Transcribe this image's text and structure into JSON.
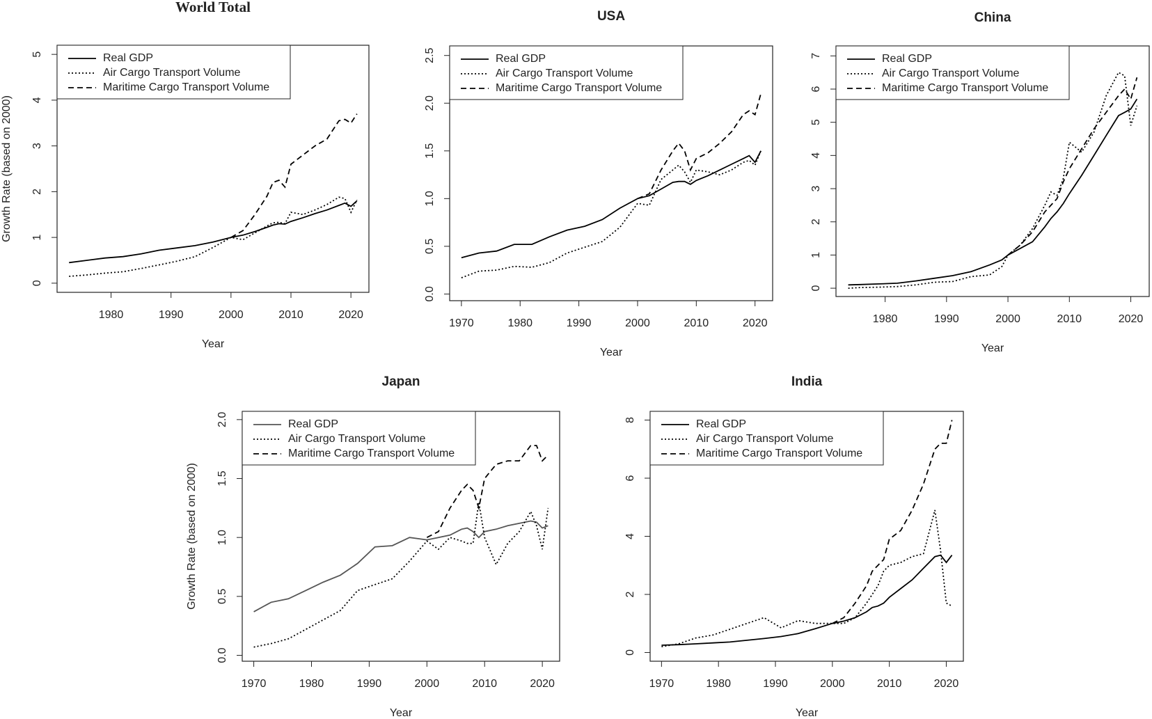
{
  "chart_data": [
    {
      "type": "line",
      "title": "World Total",
      "xlabel": "Year",
      "ylabel": "Growth Rate (based on 2000)",
      "x": [
        1973,
        1976,
        1979,
        1982,
        1985,
        1988,
        1991,
        1994,
        1997,
        2000,
        2002,
        2004,
        2006,
        2007,
        2008,
        2009,
        2010,
        2012,
        2014,
        2016,
        2018,
        2019,
        2020,
        2021
      ],
      "xlim": [
        1971,
        2023
      ],
      "xticks": [
        1980,
        1990,
        2000,
        2010,
        2020
      ],
      "ylim": [
        -0.2,
        5.2
      ],
      "yticks": [
        0,
        1,
        2,
        3,
        4,
        5
      ],
      "series": [
        {
          "name": "Real GDP",
          "color": "#000000",
          "dash": "solid",
          "values": [
            0.45,
            0.5,
            0.55,
            0.58,
            0.64,
            0.72,
            0.77,
            0.82,
            0.9,
            1.0,
            1.05,
            1.13,
            1.22,
            1.27,
            1.3,
            1.29,
            1.35,
            1.43,
            1.52,
            1.6,
            1.7,
            1.75,
            1.68,
            1.8
          ]
        },
        {
          "name": "Air Cargo Transport Volume",
          "color": "#000000",
          "dash": "dotted",
          "values": [
            0.15,
            0.18,
            0.22,
            0.25,
            0.32,
            0.4,
            0.48,
            0.58,
            0.78,
            1.0,
            0.95,
            1.1,
            1.25,
            1.32,
            1.33,
            1.3,
            1.55,
            1.5,
            1.6,
            1.72,
            1.88,
            1.85,
            1.55,
            1.82
          ]
        },
        {
          "name": "Maritime Cargo Transport Volume",
          "color": "#000000",
          "dash": "dashed",
          "values": [
            null,
            null,
            null,
            null,
            null,
            null,
            null,
            null,
            null,
            1.0,
            1.15,
            1.5,
            1.9,
            2.2,
            2.25,
            2.1,
            2.6,
            2.8,
            3.0,
            3.15,
            3.55,
            3.58,
            3.5,
            3.7
          ]
        }
      ]
    },
    {
      "type": "line",
      "title": "USA",
      "xlabel": "Year",
      "x": [
        1970,
        1973,
        1976,
        1979,
        1982,
        1985,
        1988,
        1991,
        1994,
        1997,
        2000,
        2002,
        2004,
        2006,
        2007,
        2008,
        2009,
        2010,
        2012,
        2014,
        2016,
        2018,
        2019,
        2020,
        2021
      ],
      "xlim": [
        1968,
        2023
      ],
      "xticks": [
        1970,
        1980,
        1990,
        2000,
        2010,
        2020
      ],
      "ylim": [
        -0.07,
        2.6
      ],
      "yticks": [
        {
          "value": 0,
          "label": "0.0"
        },
        0.5,
        {
          "value": 1,
          "label": "1.0"
        },
        1.5,
        {
          "value": 2,
          "label": "2.0"
        },
        2.5
      ],
      "series": [
        {
          "name": "Real GDP",
          "color": "#000000",
          "dash": "solid",
          "values": [
            0.38,
            0.43,
            0.45,
            0.52,
            0.52,
            0.6,
            0.67,
            0.71,
            0.78,
            0.9,
            1.0,
            1.03,
            1.1,
            1.17,
            1.18,
            1.18,
            1.15,
            1.19,
            1.24,
            1.3,
            1.36,
            1.42,
            1.45,
            1.38,
            1.5
          ]
        },
        {
          "name": "Air Cargo Transport Volume",
          "color": "#000000",
          "dash": "dotted",
          "values": [
            0.17,
            0.24,
            0.25,
            0.29,
            0.28,
            0.33,
            0.43,
            0.49,
            0.55,
            0.7,
            0.95,
            0.93,
            1.2,
            1.3,
            1.35,
            1.28,
            1.17,
            1.3,
            1.28,
            1.25,
            1.3,
            1.38,
            1.4,
            1.35,
            1.5
          ]
        },
        {
          "name": "Maritime Cargo Transport Volume",
          "color": "#000000",
          "dash": "dashed",
          "values": [
            null,
            null,
            null,
            null,
            null,
            null,
            null,
            null,
            null,
            null,
            1.0,
            1.05,
            1.3,
            1.5,
            1.58,
            1.5,
            1.3,
            1.42,
            1.48,
            1.58,
            1.7,
            1.88,
            1.92,
            1.88,
            2.1
          ]
        }
      ]
    },
    {
      "type": "line",
      "title": "China",
      "xlabel": "Year",
      "x": [
        1974,
        1976,
        1979,
        1982,
        1985,
        1988,
        1991,
        1994,
        1997,
        1999,
        2000,
        2002,
        2004,
        2006,
        2007,
        2008,
        2009,
        2010,
        2012,
        2014,
        2016,
        2018,
        2019,
        2020,
        2021
      ],
      "xlim": [
        1972,
        2023
      ],
      "xticks": [
        1980,
        1990,
        2000,
        2010,
        2020
      ],
      "ylim": [
        -0.25,
        7.3
      ],
      "yticks": [
        0,
        1,
        2,
        3,
        4,
        5,
        6,
        7
      ],
      "series": [
        {
          "name": "Real GDP",
          "color": "#000000",
          "dash": "solid",
          "values": [
            0.1,
            0.11,
            0.13,
            0.15,
            0.22,
            0.3,
            0.38,
            0.5,
            0.7,
            0.85,
            1.0,
            1.2,
            1.4,
            1.85,
            2.1,
            2.3,
            2.55,
            2.85,
            3.4,
            4.0,
            4.6,
            5.2,
            5.3,
            5.4,
            5.7
          ]
        },
        {
          "name": "Air Cargo Transport Volume",
          "color": "#000000",
          "dash": "dotted",
          "values": [
            0,
            0.02,
            0.03,
            0.05,
            0.1,
            0.18,
            0.2,
            0.35,
            0.4,
            0.65,
            1.0,
            1.3,
            1.8,
            2.5,
            2.9,
            2.8,
            3.3,
            4.4,
            4.1,
            4.7,
            5.8,
            6.5,
            6.4,
            4.9,
            5.5
          ]
        },
        {
          "name": "Maritime Cargo Transport Volume",
          "color": "#000000",
          "dash": "dashed",
          "values": [
            null,
            null,
            null,
            null,
            null,
            null,
            null,
            null,
            null,
            null,
            1.0,
            1.3,
            1.7,
            2.3,
            2.5,
            2.7,
            3.2,
            3.6,
            4.2,
            4.8,
            5.3,
            5.8,
            6.0,
            5.7,
            6.35
          ]
        }
      ]
    },
    {
      "type": "line",
      "title": "Japan",
      "xlabel": "Year",
      "ylabel": "Growth Rate (based on 2000)",
      "x": [
        1970,
        1973,
        1976,
        1979,
        1982,
        1985,
        1988,
        1991,
        1994,
        1997,
        2000,
        2002,
        2004,
        2006,
        2007,
        2008,
        2009,
        2010,
        2012,
        2014,
        2016,
        2018,
        2019,
        2020,
        2021
      ],
      "xlim": [
        1968,
        2023
      ],
      "xticks": [
        1970,
        1980,
        1990,
        2000,
        2010,
        2020
      ],
      "ylim": [
        -0.05,
        2.07
      ],
      "yticks": [
        {
          "value": 0,
          "label": "0.0"
        },
        0.5,
        {
          "value": 1,
          "label": "1.0"
        },
        1.5,
        {
          "value": 2,
          "label": "2.0"
        }
      ],
      "series": [
        {
          "name": "Real GDP",
          "color": "#555555",
          "dash": "solid",
          "values": [
            0.37,
            0.45,
            0.48,
            0.55,
            0.62,
            0.68,
            0.78,
            0.92,
            0.93,
            1.0,
            0.98,
            1.0,
            1.02,
            1.07,
            1.08,
            1.05,
            1.0,
            1.05,
            1.07,
            1.1,
            1.12,
            1.14,
            1.13,
            1.08,
            1.1
          ]
        },
        {
          "name": "Air Cargo Transport Volume",
          "color": "#000000",
          "dash": "dotted",
          "values": [
            0.07,
            0.1,
            0.14,
            0.22,
            0.3,
            0.38,
            0.55,
            0.6,
            0.65,
            0.8,
            0.97,
            0.9,
            1.0,
            0.97,
            0.95,
            0.95,
            1.3,
            1.0,
            0.77,
            0.95,
            1.05,
            1.22,
            1.1,
            0.9,
            1.25
          ]
        },
        {
          "name": "Maritime Cargo Transport Volume",
          "color": "#000000",
          "dash": "dashed",
          "values": [
            null,
            null,
            null,
            null,
            null,
            null,
            null,
            null,
            null,
            null,
            1.0,
            1.05,
            1.25,
            1.4,
            1.45,
            1.4,
            1.25,
            1.5,
            1.62,
            1.65,
            1.65,
            1.78,
            1.78,
            1.65,
            1.7
          ]
        }
      ]
    },
    {
      "type": "line",
      "title": "India",
      "xlabel": "Year",
      "x": [
        1970,
        1973,
        1976,
        1979,
        1982,
        1985,
        1988,
        1991,
        1994,
        1997,
        2000,
        2002,
        2004,
        2006,
        2007,
        2008,
        2009,
        2010,
        2012,
        2014,
        2016,
        2018,
        2019,
        2020,
        2021
      ],
      "xlim": [
        1968,
        2023
      ],
      "xticks": [
        1970,
        1980,
        1990,
        2000,
        2010,
        2020
      ],
      "ylim": [
        -0.3,
        8.3
      ],
      "yticks": [
        0,
        2,
        4,
        6,
        8
      ],
      "series": [
        {
          "name": "Real GDP",
          "color": "#000000",
          "dash": "solid",
          "values": [
            0.25,
            0.27,
            0.3,
            0.33,
            0.36,
            0.42,
            0.48,
            0.55,
            0.65,
            0.82,
            1.0,
            1.08,
            1.2,
            1.4,
            1.55,
            1.6,
            1.7,
            1.9,
            2.2,
            2.5,
            2.9,
            3.3,
            3.35,
            3.1,
            3.35
          ]
        },
        {
          "name": "Air Cargo Transport Volume",
          "color": "#000000",
          "dash": "dotted",
          "values": [
            0.2,
            0.3,
            0.5,
            0.6,
            0.8,
            1.0,
            1.2,
            0.85,
            1.1,
            1.0,
            1.0,
            1.0,
            1.2,
            1.7,
            2.0,
            2.3,
            2.8,
            3.0,
            3.1,
            3.3,
            3.4,
            4.9,
            3.5,
            1.7,
            1.6
          ]
        },
        {
          "name": "Maritime Cargo Transport Volume",
          "color": "#000000",
          "dash": "dashed",
          "values": [
            null,
            null,
            null,
            null,
            null,
            null,
            null,
            null,
            null,
            null,
            1.0,
            1.2,
            1.7,
            2.3,
            2.8,
            3.0,
            3.2,
            3.9,
            4.2,
            4.9,
            5.8,
            7.0,
            7.2,
            7.2,
            8.0
          ]
        }
      ]
    }
  ]
}
